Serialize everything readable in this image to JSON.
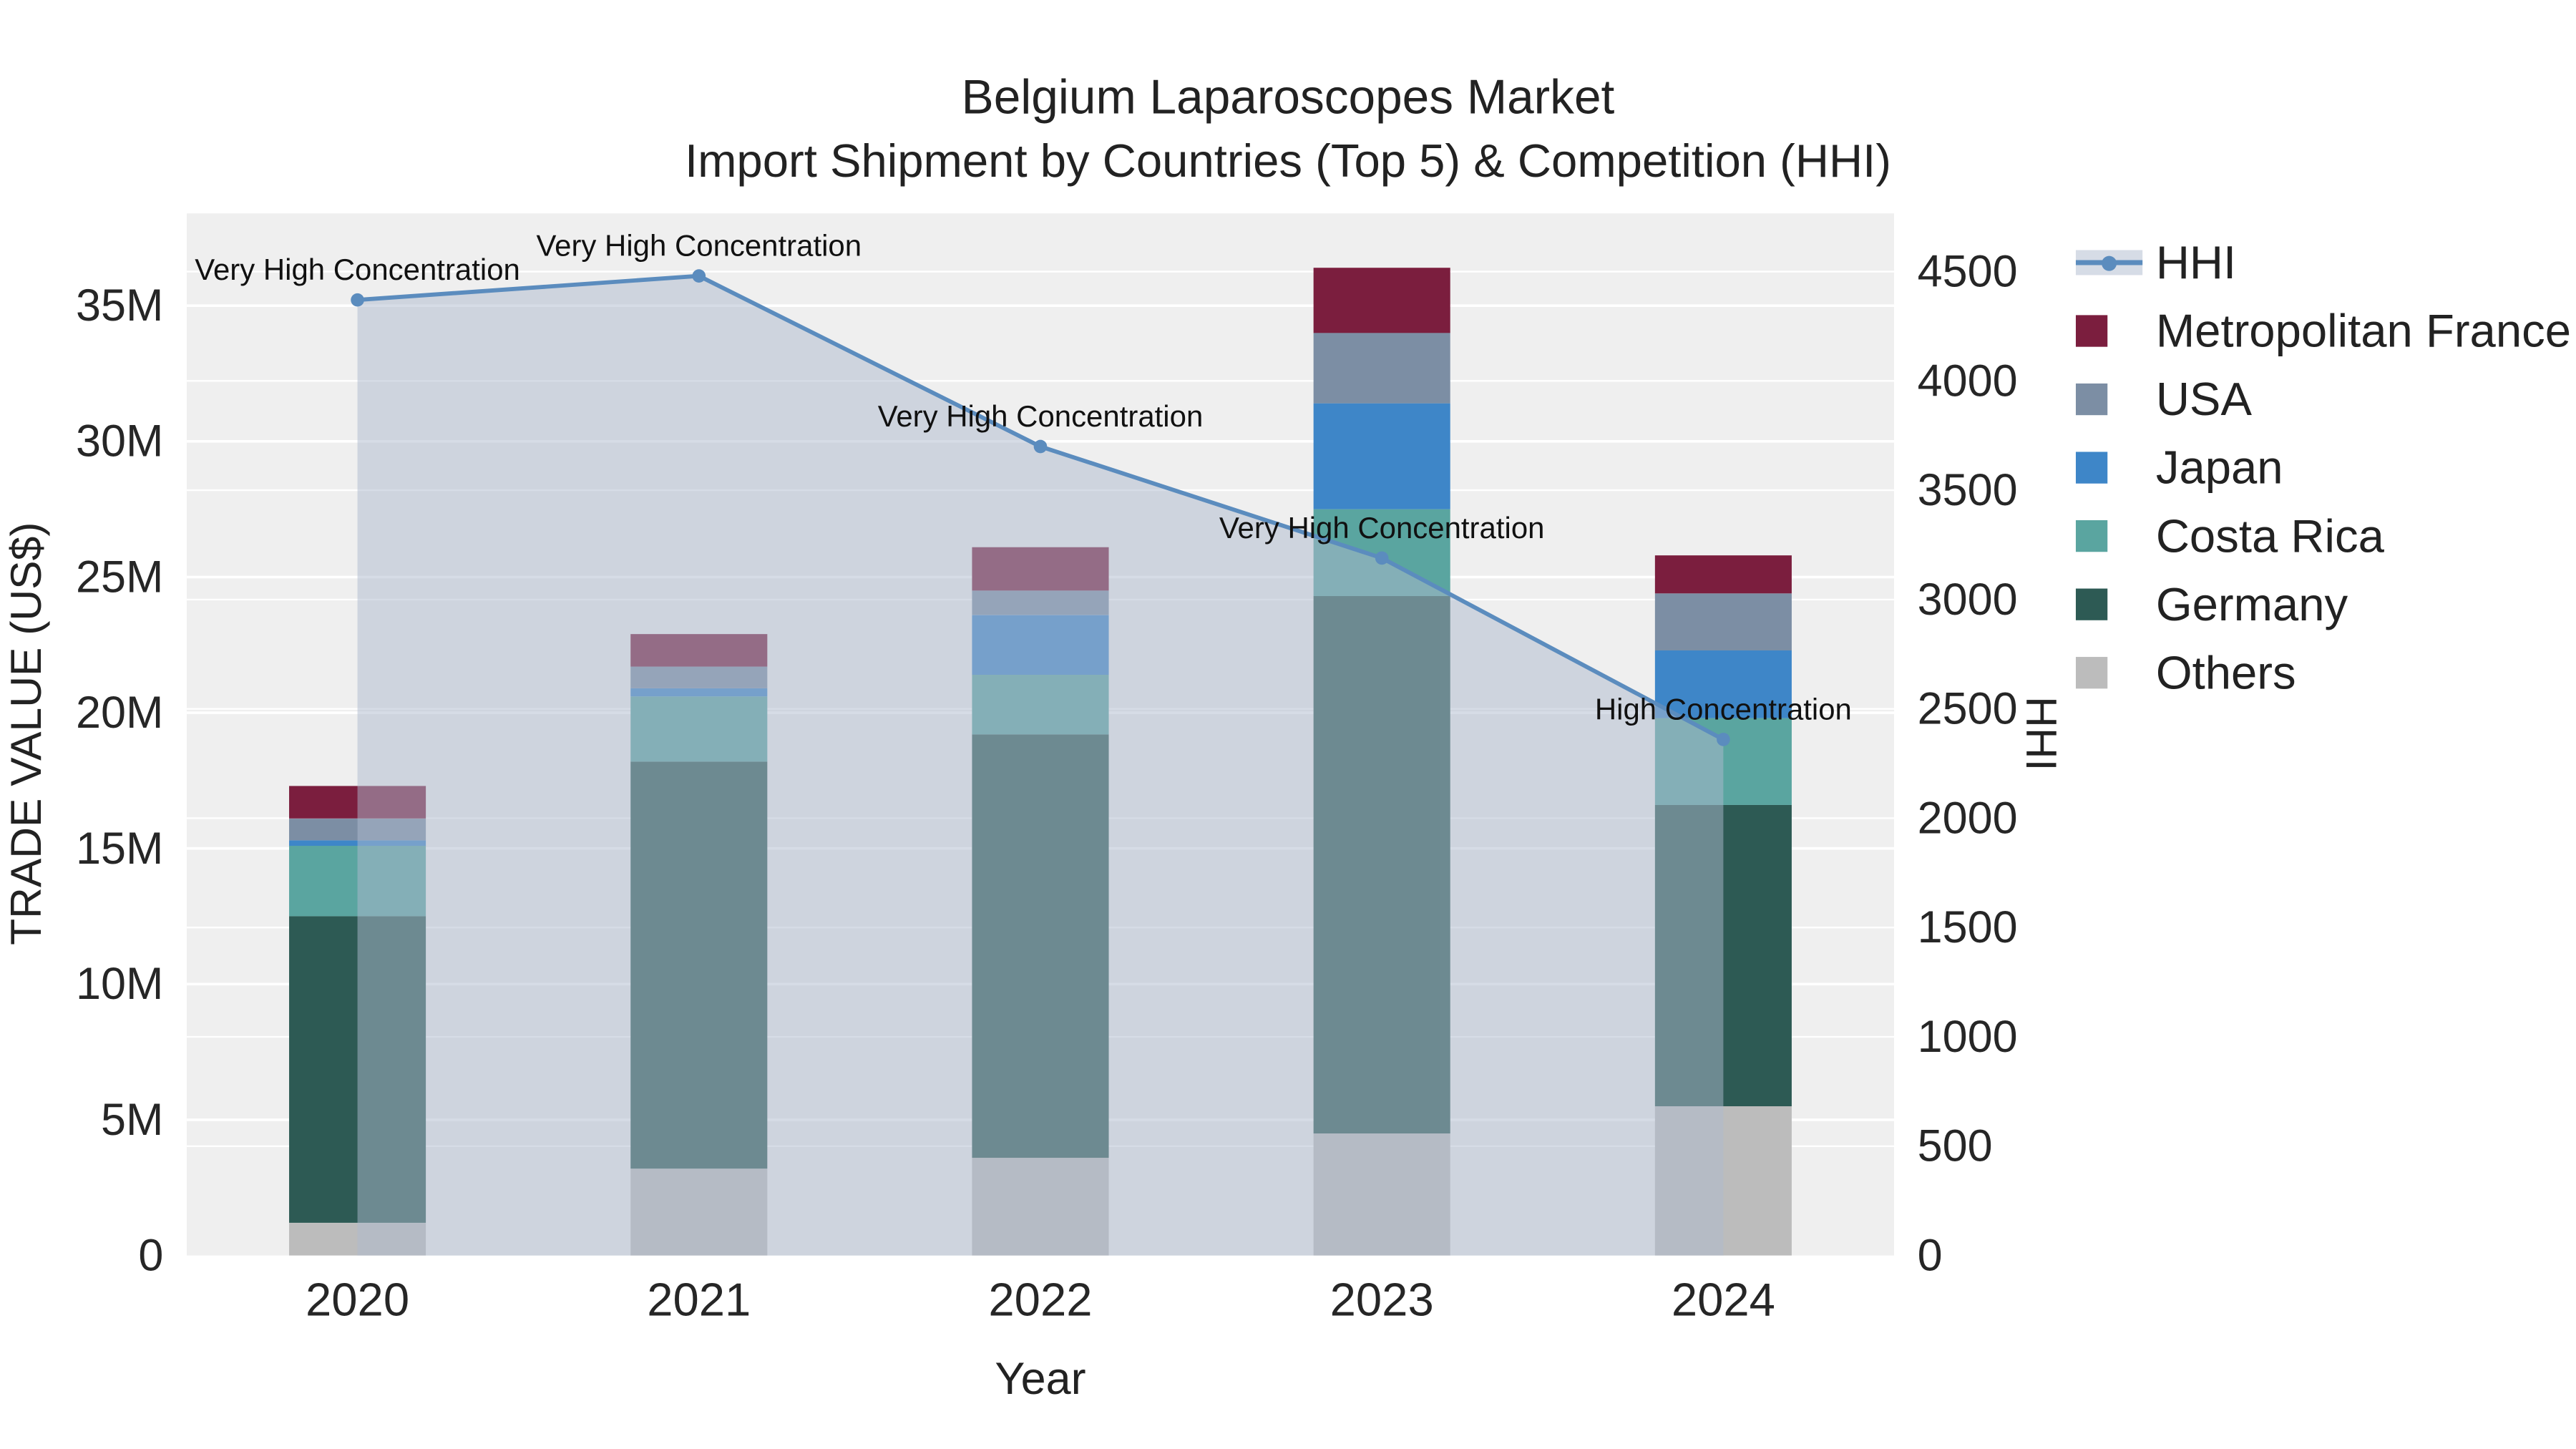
{
  "title": {
    "line1": "Belgium Laparoscopes Market",
    "line2": "Import Shipment by Countries (Top 5) & Competition (HHI)"
  },
  "chart_data": {
    "type": "bar",
    "subtype": "stacked-bars-with-hhi-line-overlay",
    "title": "Belgium Laparoscopes Market Import Shipment by Countries (Top 5) & Competition (HHI)",
    "xlabel": "Year",
    "ylabel_left": "TRADE VALUE (US$)",
    "ylabel_right": "HHI",
    "categories": [
      "2020",
      "2021",
      "2022",
      "2023",
      "2024"
    ],
    "bar_unit": "million US$",
    "bar_series": [
      {
        "name": "Others",
        "color": "#bcbcbc",
        "values": [
          1.2,
          3.2,
          3.6,
          4.5,
          5.5
        ]
      },
      {
        "name": "Germany",
        "color": "#2d5a54",
        "values": [
          11.3,
          15.0,
          15.6,
          19.8,
          11.1
        ]
      },
      {
        "name": "Costa Rica",
        "color": "#5aa5a0",
        "values": [
          2.6,
          2.4,
          2.2,
          3.2,
          3.2
        ]
      },
      {
        "name": "Japan",
        "color": "#3e86c8",
        "values": [
          0.2,
          0.3,
          2.2,
          3.9,
          2.5
        ]
      },
      {
        "name": "USA",
        "color": "#7c8ea4",
        "values": [
          0.8,
          0.8,
          0.9,
          2.6,
          2.1
        ]
      },
      {
        "name": "Metropolitan France",
        "color": "#7b1e3e",
        "values": [
          1.2,
          1.2,
          1.6,
          2.4,
          1.4
        ]
      }
    ],
    "line_series": {
      "name": "HHI",
      "color": "#5b8cbe",
      "fill_color": "rgba(173,186,205,0.5)",
      "values": [
        4370,
        4480,
        3700,
        3190,
        2360
      ],
      "annotations": [
        "Very High Concentration",
        "Very High Concentration",
        "Very High Concentration",
        "Very High Concentration",
        "High Concentration"
      ]
    },
    "yaxis_left": {
      "tick_labels": [
        "0",
        "5M",
        "10M",
        "15M",
        "20M",
        "25M",
        "30M",
        "35M"
      ],
      "tick_values": [
        0,
        5,
        10,
        15,
        20,
        25,
        30,
        35
      ],
      "max": 38.4
    },
    "yaxis_right": {
      "tick_labels": [
        "0",
        "500",
        "1000",
        "1500",
        "2000",
        "2500",
        "3000",
        "3500",
        "4000",
        "4500"
      ],
      "tick_values": [
        0,
        500,
        1000,
        1500,
        2000,
        2500,
        3000,
        3500,
        4000,
        4500
      ],
      "max": 4766
    },
    "legend": [
      {
        "name": "HHI",
        "type": "line",
        "color": "#5b8cbe"
      },
      {
        "name": "Metropolitan France",
        "type": "square",
        "color": "#7b1e3e"
      },
      {
        "name": "USA",
        "type": "square",
        "color": "#7c8ea4"
      },
      {
        "name": "Japan",
        "type": "square",
        "color": "#3e86c8"
      },
      {
        "name": "Costa Rica",
        "type": "square",
        "color": "#5aa5a0"
      },
      {
        "name": "Germany",
        "type": "square",
        "color": "#2d5a54"
      },
      {
        "name": "Others",
        "type": "square",
        "color": "#bcbcbc"
      }
    ],
    "plot_background": "#efefef",
    "grid": true,
    "legend_position": "right"
  }
}
